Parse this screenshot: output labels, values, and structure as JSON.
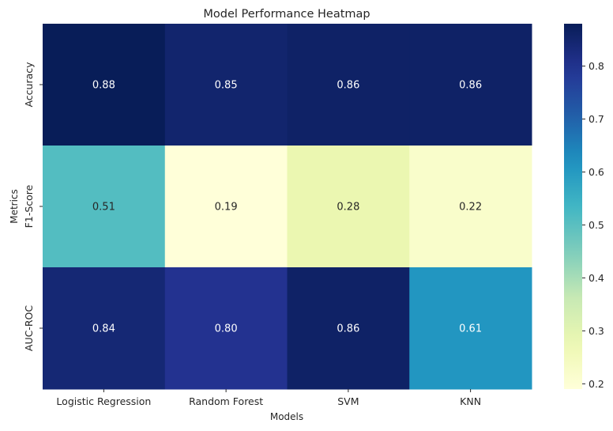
{
  "chart_data": {
    "type": "heatmap",
    "title": "Model Performance Heatmap",
    "xlabel": "Models",
    "ylabel": "Metrics",
    "x_categories": [
      "Logistic Regression",
      "Random Forest",
      "SVM",
      "KNN"
    ],
    "y_categories": [
      "Accuracy",
      "F1-Score",
      "AUC-ROC"
    ],
    "values": [
      [
        0.88,
        0.85,
        0.86,
        0.86
      ],
      [
        0.51,
        0.19,
        0.28,
        0.22
      ],
      [
        0.84,
        0.8,
        0.86,
        0.61
      ]
    ],
    "value_labels": [
      [
        "0.88",
        "0.85",
        "0.86",
        "0.86"
      ],
      [
        "0.51",
        "0.19",
        "0.28",
        "0.22"
      ],
      [
        "0.84",
        "0.80",
        "0.86",
        "0.61"
      ]
    ],
    "colormap": "YlGnBu",
    "colorbar": {
      "vmin": 0.19,
      "vmax": 0.88,
      "ticks": [
        0.2,
        0.3,
        0.4,
        0.5,
        0.6,
        0.7,
        0.8
      ],
      "tick_labels": [
        "0.2",
        "0.3",
        "0.4",
        "0.5",
        "0.6",
        "0.7",
        "0.8"
      ]
    },
    "annotation_colors": {
      "on_dark": "#ffffff",
      "on_light": "#262626"
    }
  }
}
